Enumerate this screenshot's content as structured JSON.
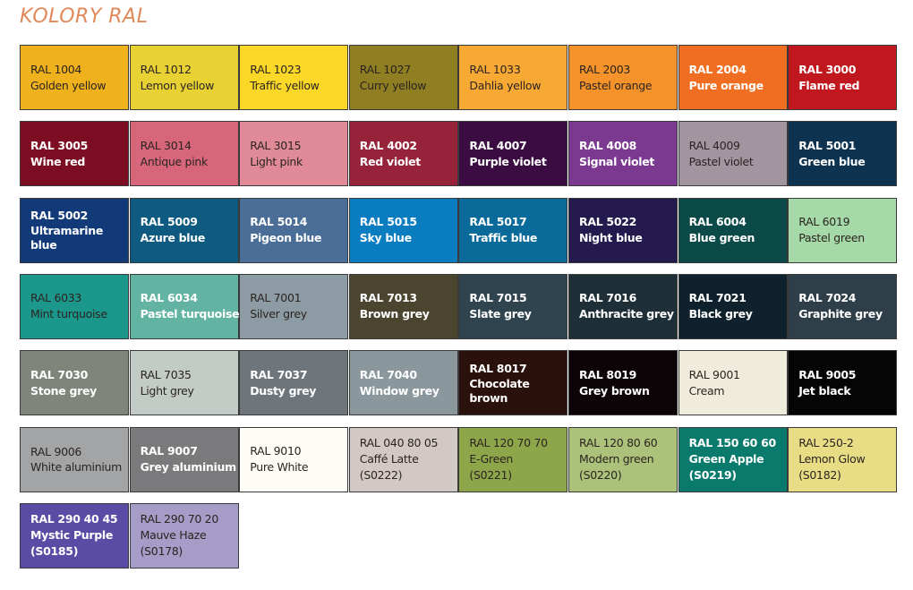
{
  "title": "KOLORY RAL",
  "swatches": [
    {
      "code": "RAL 1004",
      "name": "Golden yellow",
      "color": "#efb21c",
      "text": "light"
    },
    {
      "code": "RAL 1012",
      "name": "Lemon yellow",
      "color": "#e8d133",
      "text": "light"
    },
    {
      "code": "RAL 1023",
      "name": "Traffic yellow",
      "color": "#fbd827",
      "text": "light"
    },
    {
      "code": "RAL 1027",
      "name": "Curry yellow",
      "color": "#8f7e22",
      "text": "light"
    },
    {
      "code": "RAL 1033",
      "name": "Dahlia yellow",
      "color": "#f7a934",
      "text": "light"
    },
    {
      "code": "RAL 2003",
      "name": "Pastel orange",
      "color": "#f5932a",
      "text": "light"
    },
    {
      "code": "RAL 2004",
      "name": "Pure orange",
      "color": "#ef6e21",
      "text": "dark"
    },
    {
      "code": "RAL 3000",
      "name": "Flame red",
      "color": "#c1171e",
      "text": "dark"
    },
    {
      "code": "RAL 3005",
      "name": "Wine red",
      "color": "#7c0d22",
      "text": "dark"
    },
    {
      "code": "RAL 3014",
      "name": "Antique pink",
      "color": "#d8667a",
      "text": "light"
    },
    {
      "code": "RAL 3015",
      "name": "Light pink",
      "color": "#e08a98",
      "text": "light"
    },
    {
      "code": "RAL 4002",
      "name": "Red violet",
      "color": "#97233a",
      "text": "dark"
    },
    {
      "code": "RAL 4007",
      "name": "Purple violet",
      "color": "#3a0c41",
      "text": "dark"
    },
    {
      "code": "RAL 4008",
      "name": "Signal violet",
      "color": "#7b3a90",
      "text": "dark"
    },
    {
      "code": "RAL 4009",
      "name": "Pastel violet",
      "color": "#a295a0",
      "text": "light"
    },
    {
      "code": "RAL 5001",
      "name": "Green blue",
      "color": "#0d3350",
      "text": "dark"
    },
    {
      "code": "RAL 5002",
      "name": "Ultramarine blue",
      "color": "#123a78",
      "text": "dark"
    },
    {
      "code": "RAL 5009",
      "name": "Azure blue",
      "color": "#0e5a80",
      "text": "dark"
    },
    {
      "code": "RAL 5014",
      "name": "Pigeon blue",
      "color": "#4a6e97",
      "text": "dark"
    },
    {
      "code": "RAL 5015",
      "name": "Sky blue",
      "color": "#0a7cc0",
      "text": "dark"
    },
    {
      "code": "RAL 5017",
      "name": "Traffic blue",
      "color": "#0a6b9a",
      "text": "dark"
    },
    {
      "code": "RAL 5022",
      "name": "Night blue",
      "color": "#241a4d",
      "text": "dark"
    },
    {
      "code": "RAL 6004",
      "name": "Blue green",
      "color": "#0b4a48",
      "text": "dark"
    },
    {
      "code": "RAL 6019",
      "name": "Pastel green",
      "color": "#a6d9a8",
      "text": "light"
    },
    {
      "code": "RAL 6033",
      "name": "Mint turquoise",
      "color": "#1c978c",
      "text": "light"
    },
    {
      "code": "RAL 6034",
      "name": "Pastel turquoise",
      "color": "#62b3a2",
      "text": "dark"
    },
    {
      "code": "RAL 7001",
      "name": "Silver grey",
      "color": "#8d9ca4",
      "text": "light"
    },
    {
      "code": "RAL 7013",
      "name": "Brown grey",
      "color": "#4b4530",
      "text": "dark"
    },
    {
      "code": "RAL 7015",
      "name": "Slate grey",
      "color": "#2f444f",
      "text": "dark"
    },
    {
      "code": "RAL 7016",
      "name": "Anthracite grey",
      "color": "#1f2f38",
      "text": "dark"
    },
    {
      "code": "RAL 7021",
      "name": "Black grey",
      "color": "#0f212c",
      "text": "dark"
    },
    {
      "code": "RAL 7024",
      "name": "Graphite grey",
      "color": "#2f3f49",
      "text": "dark"
    },
    {
      "code": "RAL 7030",
      "name": "Stone grey",
      "color": "#7f857a",
      "text": "dark"
    },
    {
      "code": "RAL 7035",
      "name": "Light grey",
      "color": "#c3cbc6",
      "text": "light"
    },
    {
      "code": "RAL 7037",
      "name": "Dusty grey",
      "color": "#6f767b",
      "text": "dark"
    },
    {
      "code": "RAL 7040",
      "name": "Window grey",
      "color": "#8a979d",
      "text": "dark"
    },
    {
      "code": "RAL 8017",
      "name": "Chocolate brown",
      "color": "#2a110b",
      "text": "dark"
    },
    {
      "code": "RAL 8019",
      "name": "Grey brown",
      "color": "#0c0406",
      "text": "dark"
    },
    {
      "code": "RAL 9001",
      "name": "Cream",
      "color": "#f0ecdc",
      "text": "light"
    },
    {
      "code": "RAL 9005",
      "name": "Jet black",
      "color": "#050505",
      "text": "dark"
    },
    {
      "code": "RAL 9006",
      "name": "White aluminium",
      "color": "#a3a4a6",
      "text": "light"
    },
    {
      "code": "RAL 9007",
      "name": "Grey aluminium",
      "color": "#7a7a7c",
      "text": "dark"
    },
    {
      "code": "RAL 9010",
      "name": "Pure White",
      "color": "#fdfdf5",
      "text": "light"
    },
    {
      "code": "RAL 040 80 05",
      "name": "Caffé Latte",
      "sub": "(S0222)",
      "color": "#d3c9c4",
      "text": "light"
    },
    {
      "code": "RAL 120 70 70",
      "name": "E-Green",
      "sub": "(S0221)",
      "color": "#8ea64a",
      "text": "light"
    },
    {
      "code": "RAL 120 80 60",
      "name": "Modern green",
      "sub": "(S0220)",
      "color": "#acc27a",
      "text": "light"
    },
    {
      "code": "RAL 150 60 60",
      "name": "Green Apple",
      "sub": "(S0219)",
      "color": "#0a7a6c",
      "text": "dark"
    },
    {
      "code": "RAL 250-2",
      "name": "Lemon Glow",
      "sub": "(S0182)",
      "color": "#e8dd84",
      "text": "light"
    },
    {
      "code": "RAL 290 40 45",
      "name": "Mystic Purple",
      "sub": "(S0185)",
      "color": "#5a4ca4",
      "text": "dark"
    },
    {
      "code": "RAL 290 70 20",
      "name": "Mauve Haze",
      "sub": "(S0178)",
      "color": "#a59cc8",
      "text": "light"
    }
  ]
}
